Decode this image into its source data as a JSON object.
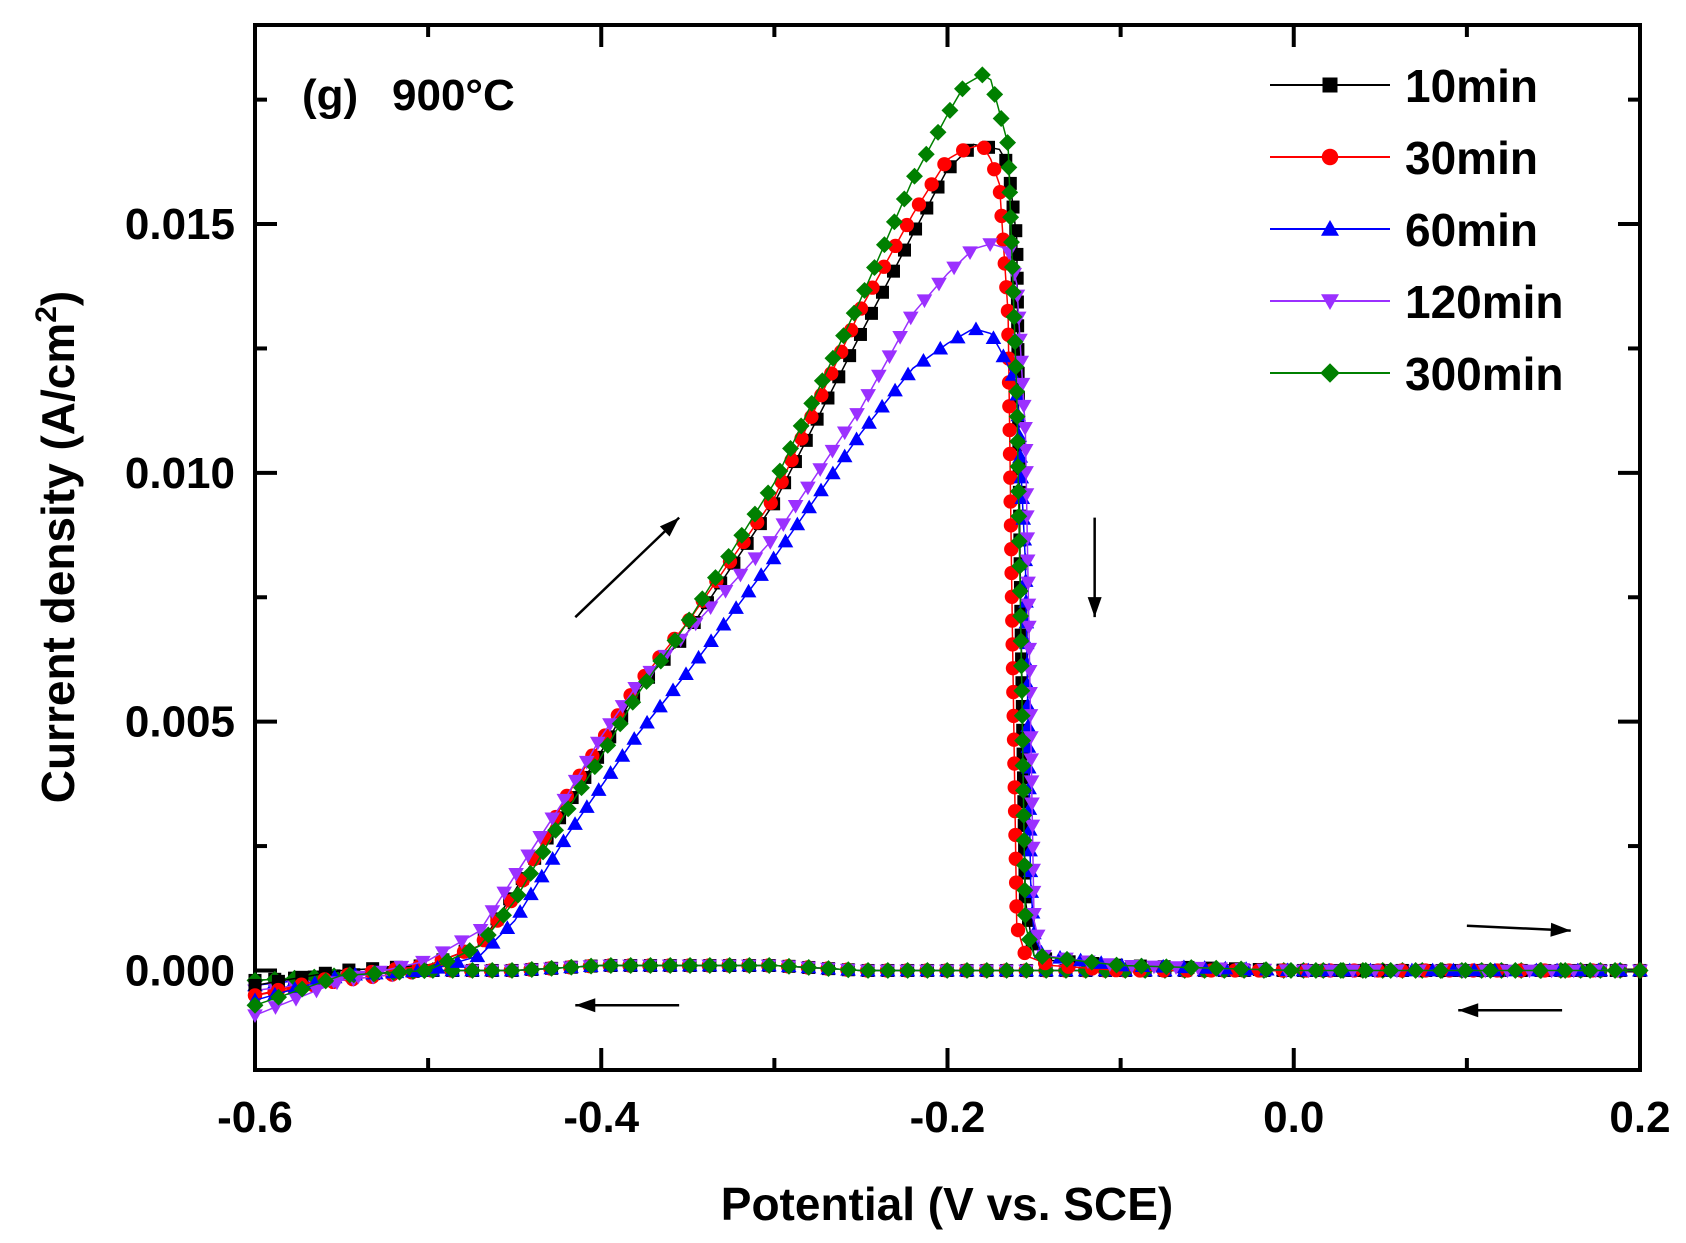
{
  "chart_data": {
    "type": "line",
    "panel_label": "(g)",
    "title": "900°C",
    "xlabel": "Potential (V vs. SCE)",
    "ylabel_main": "Current density (A/cm",
    "ylabel_sup": "2",
    "ylabel_close": ")",
    "xlim": [
      -0.6,
      0.2
    ],
    "ylim": [
      -0.002,
      0.019
    ],
    "x_ticks": [
      -0.6,
      -0.4,
      -0.2,
      0.0,
      0.2
    ],
    "x_tick_labels": [
      "-0.6",
      "-0.4",
      "-0.2",
      "0.0",
      "0.2"
    ],
    "y_ticks": [
      0.0,
      0.005,
      0.01,
      0.015
    ],
    "y_tick_labels": [
      "0.000",
      "0.005",
      "0.010",
      "0.015"
    ],
    "legend_position": "top-right",
    "grid": false,
    "series": [
      {
        "name": "10min",
        "color": "#000000",
        "marker": "square",
        "forward": [
          [
            -0.6,
            -0.0003
          ],
          [
            -0.55,
            0.0
          ],
          [
            -0.5,
            0.0001
          ],
          [
            -0.47,
            0.0005
          ],
          [
            -0.45,
            0.0016
          ],
          [
            -0.42,
            0.0033
          ],
          [
            -0.4,
            0.0044
          ],
          [
            -0.38,
            0.0056
          ],
          [
            -0.35,
            0.0068
          ],
          [
            -0.3,
            0.0094
          ],
          [
            -0.25,
            0.0128
          ],
          [
            -0.22,
            0.0148
          ],
          [
            -0.2,
            0.0161
          ],
          [
            -0.185,
            0.0166
          ],
          [
            -0.17,
            0.0165
          ],
          [
            -0.165,
            0.0162
          ],
          [
            -0.16,
            0.0147
          ],
          [
            -0.158,
            0.008
          ],
          [
            -0.155,
            0.0014
          ],
          [
            -0.15,
            0.0003
          ],
          [
            -0.14,
            0.0002
          ],
          [
            -0.1,
            0.0001
          ],
          [
            0.0,
            0.0
          ],
          [
            0.2,
            0.0
          ]
        ],
        "reverse": [
          [
            0.2,
            0.0
          ],
          [
            0.0,
            0.0
          ],
          [
            -0.1,
            0.0
          ],
          [
            -0.2,
            0.0
          ],
          [
            -0.25,
            0.0
          ],
          [
            -0.3,
            0.0001
          ],
          [
            -0.35,
            0.0001
          ],
          [
            -0.4,
            0.0001
          ],
          [
            -0.45,
            0.0
          ],
          [
            -0.5,
            0.0
          ],
          [
            -0.55,
            -0.0001
          ],
          [
            -0.6,
            -0.0002
          ]
        ]
      },
      {
        "name": "30min",
        "color": "#ff0000",
        "marker": "circle",
        "forward": [
          [
            -0.6,
            -0.0005
          ],
          [
            -0.55,
            -0.0001
          ],
          [
            -0.5,
            0.0001
          ],
          [
            -0.47,
            0.0005
          ],
          [
            -0.45,
            0.0015
          ],
          [
            -0.42,
            0.0035
          ],
          [
            -0.4,
            0.0046
          ],
          [
            -0.38,
            0.0057
          ],
          [
            -0.35,
            0.007
          ],
          [
            -0.3,
            0.0095
          ],
          [
            -0.25,
            0.0133
          ],
          [
            -0.22,
            0.0152
          ],
          [
            -0.2,
            0.0163
          ],
          [
            -0.19,
            0.0165
          ],
          [
            -0.18,
            0.0166
          ],
          [
            -0.175,
            0.0163
          ],
          [
            -0.17,
            0.0158
          ],
          [
            -0.165,
            0.0132
          ],
          [
            -0.163,
            0.008
          ],
          [
            -0.16,
            0.0009
          ],
          [
            -0.155,
            0.0003
          ],
          [
            -0.14,
            0.0001
          ],
          [
            -0.1,
            0.0
          ],
          [
            0.0,
            0.0
          ],
          [
            0.2,
            0.0
          ]
        ],
        "reverse": [
          [
            0.2,
            0.0
          ],
          [
            0.0,
            0.0
          ],
          [
            -0.1,
            0.0
          ],
          [
            -0.2,
            0.0
          ],
          [
            -0.25,
            0.0
          ],
          [
            -0.3,
            0.0001
          ],
          [
            -0.35,
            0.0001
          ],
          [
            -0.4,
            0.0001
          ],
          [
            -0.45,
            0.0
          ],
          [
            -0.5,
            0.0
          ],
          [
            -0.55,
            -0.0002
          ],
          [
            -0.6,
            -0.0005
          ]
        ]
      },
      {
        "name": "60min",
        "color": "#0000ff",
        "marker": "triangle-up",
        "forward": [
          [
            -0.6,
            -0.0006
          ],
          [
            -0.55,
            -0.0001
          ],
          [
            -0.5,
            0.0
          ],
          [
            -0.47,
            0.0003
          ],
          [
            -0.45,
            0.001
          ],
          [
            -0.42,
            0.0027
          ],
          [
            -0.4,
            0.0037
          ],
          [
            -0.38,
            0.0047
          ],
          [
            -0.35,
            0.006
          ],
          [
            -0.3,
            0.0083
          ],
          [
            -0.25,
            0.0108
          ],
          [
            -0.22,
            0.0121
          ],
          [
            -0.2,
            0.0126
          ],
          [
            -0.185,
            0.0129
          ],
          [
            -0.175,
            0.0128
          ],
          [
            -0.17,
            0.0125
          ],
          [
            -0.16,
            0.0118
          ],
          [
            -0.155,
            0.0082
          ],
          [
            -0.152,
            0.0018
          ],
          [
            -0.15,
            0.0007
          ],
          [
            -0.145,
            0.0003
          ],
          [
            -0.1,
            0.0001
          ],
          [
            0.0,
            0.0
          ],
          [
            0.2,
            0.0
          ]
        ],
        "reverse": [
          [
            0.2,
            0.0
          ],
          [
            0.0,
            0.0
          ],
          [
            -0.1,
            0.0
          ],
          [
            -0.2,
            0.0
          ],
          [
            -0.25,
            0.0
          ],
          [
            -0.3,
            0.0001
          ],
          [
            -0.35,
            0.0001
          ],
          [
            -0.4,
            0.0001
          ],
          [
            -0.45,
            0.0
          ],
          [
            -0.5,
            0.0
          ],
          [
            -0.55,
            -0.0001
          ],
          [
            -0.6,
            -0.0003
          ]
        ]
      },
      {
        "name": "120min",
        "color": "#9b30ff",
        "marker": "triangle-down",
        "forward": [
          [
            -0.6,
            -0.0009
          ],
          [
            -0.55,
            -0.0002
          ],
          [
            -0.5,
            0.0002
          ],
          [
            -0.47,
            0.0008
          ],
          [
            -0.45,
            0.0019
          ],
          [
            -0.42,
            0.0035
          ],
          [
            -0.4,
            0.0047
          ],
          [
            -0.38,
            0.0057
          ],
          [
            -0.35,
            0.0068
          ],
          [
            -0.3,
            0.0087
          ],
          [
            -0.25,
            0.0113
          ],
          [
            -0.22,
            0.0132
          ],
          [
            -0.2,
            0.014
          ],
          [
            -0.185,
            0.0145
          ],
          [
            -0.175,
            0.0146
          ],
          [
            -0.165,
            0.0145
          ],
          [
            -0.16,
            0.0138
          ],
          [
            -0.155,
            0.0108
          ],
          [
            -0.152,
            0.005
          ],
          [
            -0.15,
            0.001
          ],
          [
            -0.145,
            0.0003
          ],
          [
            -0.1,
            0.0001
          ],
          [
            0.0,
            0.0
          ],
          [
            0.2,
            0.0
          ]
        ],
        "reverse": [
          [
            0.2,
            0.0
          ],
          [
            0.0,
            0.0
          ],
          [
            -0.1,
            0.0
          ],
          [
            -0.2,
            0.0
          ],
          [
            -0.25,
            0.0
          ],
          [
            -0.3,
            0.0001
          ],
          [
            -0.35,
            0.0001
          ],
          [
            -0.4,
            0.0001
          ],
          [
            -0.45,
            0.0
          ],
          [
            -0.5,
            0.0
          ],
          [
            -0.55,
            -0.0002
          ],
          [
            -0.6,
            -0.0004
          ]
        ]
      },
      {
        "name": "300min",
        "color": "#008000",
        "marker": "diamond",
        "forward": [
          [
            -0.6,
            -0.0007
          ],
          [
            -0.55,
            -0.0001
          ],
          [
            -0.5,
            0.0
          ],
          [
            -0.47,
            0.0005
          ],
          [
            -0.45,
            0.0014
          ],
          [
            -0.42,
            0.0032
          ],
          [
            -0.4,
            0.0043
          ],
          [
            -0.38,
            0.0055
          ],
          [
            -0.35,
            0.007
          ],
          [
            -0.3,
            0.0098
          ],
          [
            -0.25,
            0.0135
          ],
          [
            -0.22,
            0.0159
          ],
          [
            -0.2,
            0.0172
          ],
          [
            -0.19,
            0.0178
          ],
          [
            -0.18,
            0.018
          ],
          [
            -0.175,
            0.0179
          ],
          [
            -0.165,
            0.0166
          ],
          [
            -0.16,
            0.0116
          ],
          [
            -0.157,
            0.0055
          ],
          [
            -0.155,
            0.0009
          ],
          [
            -0.15,
            0.0003
          ],
          [
            -0.1,
            0.0001
          ],
          [
            0.0,
            0.0
          ],
          [
            0.2,
            0.0
          ]
        ],
        "reverse": [
          [
            0.2,
            0.0
          ],
          [
            0.0,
            0.0
          ],
          [
            -0.1,
            0.0
          ],
          [
            -0.2,
            0.0
          ],
          [
            -0.25,
            0.0
          ],
          [
            -0.3,
            0.0001
          ],
          [
            -0.35,
            0.0001
          ],
          [
            -0.4,
            0.0001
          ],
          [
            -0.45,
            0.0
          ],
          [
            -0.5,
            0.0
          ],
          [
            -0.55,
            -0.0001
          ],
          [
            -0.6,
            -0.0002
          ]
        ]
      }
    ],
    "annotations": [
      {
        "name": "arrow-forward-rise",
        "from": [
          -0.415,
          0.0071
        ],
        "to": [
          -0.355,
          0.0091
        ]
      },
      {
        "name": "arrow-forward-drop",
        "from": [
          -0.115,
          0.0091
        ],
        "to": [
          -0.115,
          0.0071
        ]
      },
      {
        "name": "arrow-forward-right",
        "from": [
          0.1,
          0.0009
        ],
        "to": [
          0.16,
          0.0008
        ]
      },
      {
        "name": "arrow-reverse-left-low",
        "from": [
          -0.355,
          -0.0007
        ],
        "to": [
          -0.415,
          -0.0007
        ]
      },
      {
        "name": "arrow-reverse-left-right",
        "from": [
          0.155,
          -0.0008
        ],
        "to": [
          0.095,
          -0.0008
        ]
      }
    ]
  }
}
